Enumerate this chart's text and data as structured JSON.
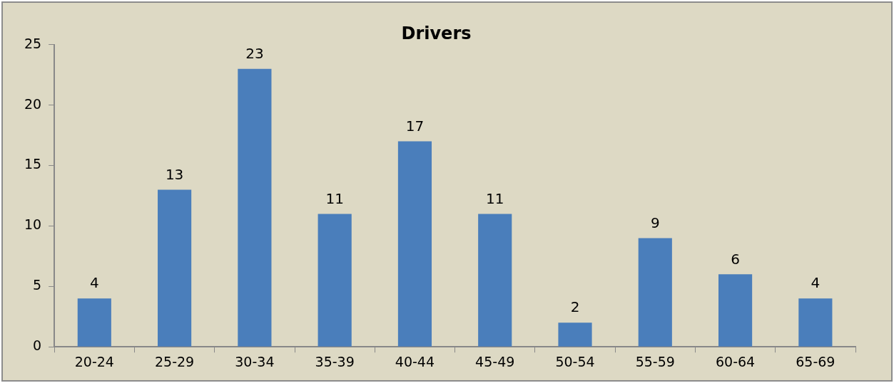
{
  "chart_data": {
    "type": "bar",
    "title": "Drivers",
    "categories": [
      "20-24",
      "25-29",
      "30-34",
      "35-39",
      "40-44",
      "45-49",
      "50-54",
      "55-59",
      "60-64",
      "65-69"
    ],
    "values": [
      4,
      13,
      23,
      11,
      17,
      11,
      2,
      9,
      6,
      4
    ],
    "color": "#4a7ebb",
    "ylim": [
      0,
      25
    ],
    "yticks": [
      0,
      5,
      10,
      15,
      20,
      25
    ],
    "grid": false,
    "legend": false,
    "data_labels": true
  }
}
